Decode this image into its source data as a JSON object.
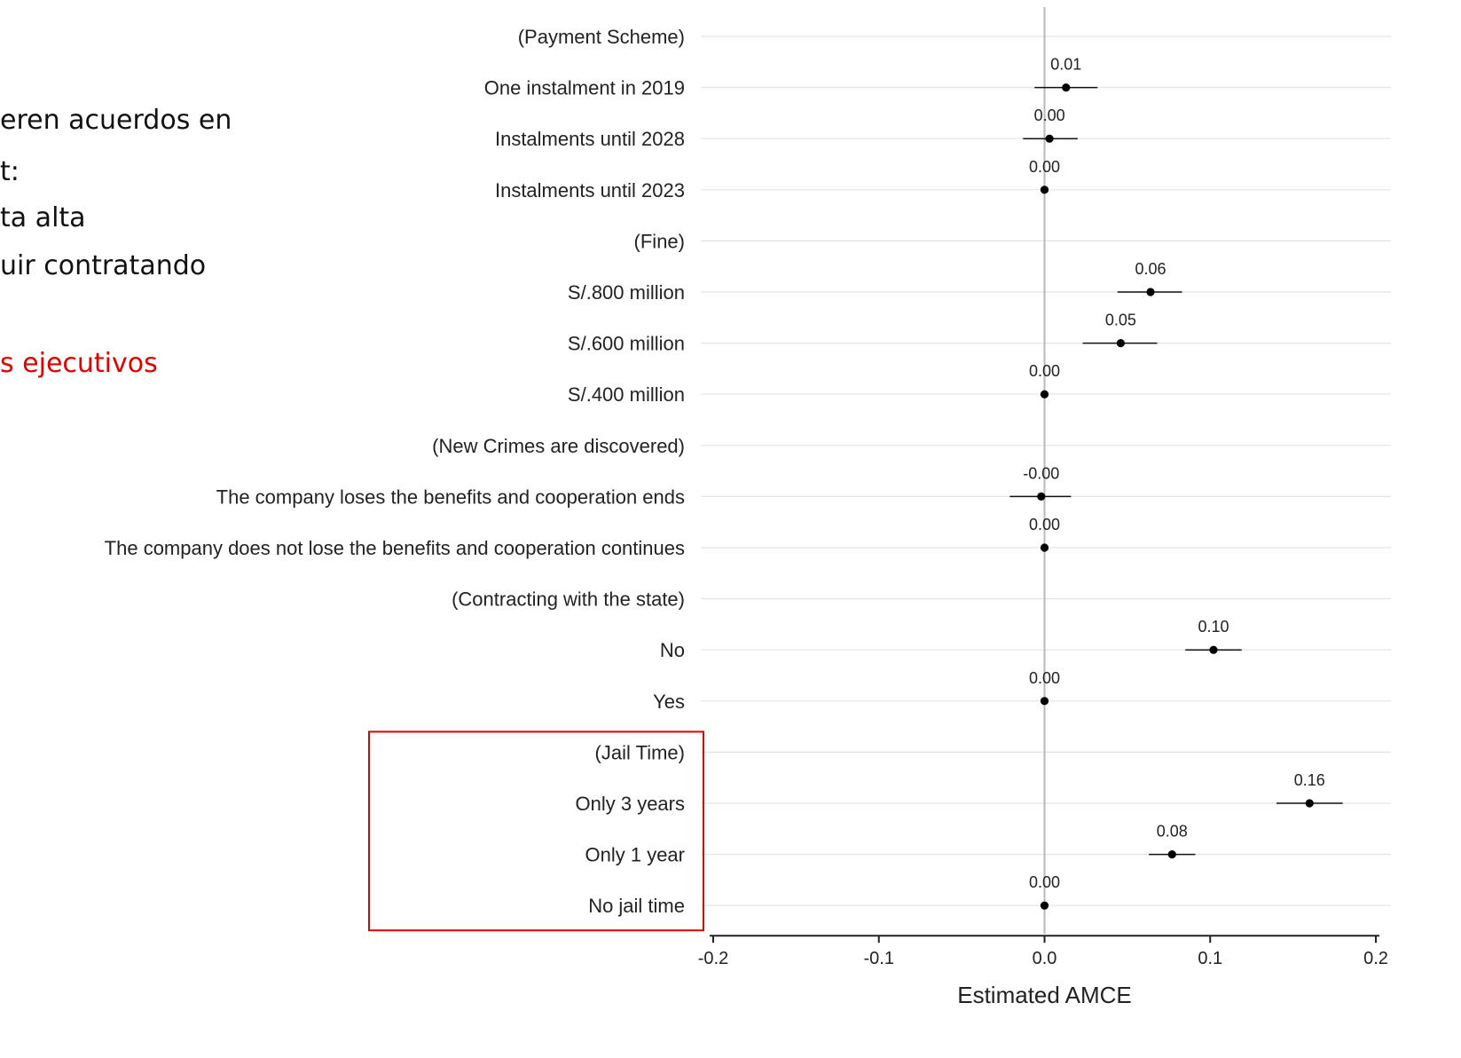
{
  "slide_text": [
    {
      "text": "eren acuerdos en",
      "color": "#111111"
    },
    {
      "text": "t:",
      "color": "#111111"
    },
    {
      "text": "ta alta",
      "color": "#111111"
    },
    {
      "text": "uir contratando",
      "color": "#111111"
    },
    {
      "text": "s ejecutivos",
      "color": "#e00000"
    }
  ],
  "chart_data": {
    "type": "scatter",
    "xlabel": "Estimated AMCE",
    "xlim": [
      -0.2,
      0.2
    ],
    "xticks": [
      "-0.2",
      "-0.1",
      "0.0",
      "0.1",
      "0.2"
    ],
    "tick_values": [
      -0.2,
      -0.1,
      0.0,
      0.1,
      0.2
    ],
    "grid": true,
    "reference_line": 0.0,
    "highlight_box": {
      "group": "(Jail Time)",
      "color": "#e00000"
    },
    "rows": [
      {
        "label": "(Payment Scheme)",
        "header": true
      },
      {
        "label": "One instalment in 2019",
        "estimate": 0.013,
        "ci": [
          -0.006,
          0.032
        ],
        "value_label": "0.01"
      },
      {
        "label": "Instalments until 2028",
        "estimate": 0.003,
        "ci": [
          -0.013,
          0.02
        ],
        "value_label": "0.00"
      },
      {
        "label": "Instalments until 2023",
        "estimate": 0.0,
        "ci": [
          0.0,
          0.0
        ],
        "value_label": "0.00"
      },
      {
        "label": "(Fine)",
        "header": true
      },
      {
        "label": "S/.800 million",
        "estimate": 0.064,
        "ci": [
          0.044,
          0.083
        ],
        "value_label": "0.06"
      },
      {
        "label": "S/.600 million",
        "estimate": 0.046,
        "ci": [
          0.023,
          0.068
        ],
        "value_label": "0.05"
      },
      {
        "label": "S/.400 million",
        "estimate": 0.0,
        "ci": [
          0.0,
          0.0
        ],
        "value_label": "0.00"
      },
      {
        "label": "(New Crimes are discovered)",
        "header": true
      },
      {
        "label": "The company loses the benefits and cooperation ends",
        "estimate": -0.002,
        "ci": [
          -0.021,
          0.016
        ],
        "value_label": "-0.00"
      },
      {
        "label": "The company does not lose the benefits and cooperation continues",
        "estimate": 0.0,
        "ci": [
          0.0,
          0.0
        ],
        "value_label": "0.00"
      },
      {
        "label": "(Contracting with the state)",
        "header": true
      },
      {
        "label": "No",
        "estimate": 0.102,
        "ci": [
          0.085,
          0.119
        ],
        "value_label": "0.10"
      },
      {
        "label": "Yes",
        "estimate": 0.0,
        "ci": [
          0.0,
          0.0
        ],
        "value_label": "0.00"
      },
      {
        "label": "(Jail Time)",
        "header": true
      },
      {
        "label": "Only 3 years",
        "estimate": 0.16,
        "ci": [
          0.14,
          0.18
        ],
        "value_label": "0.16"
      },
      {
        "label": "Only 1 year",
        "estimate": 0.077,
        "ci": [
          0.063,
          0.091
        ],
        "value_label": "0.08"
      },
      {
        "label": "No jail time",
        "estimate": 0.0,
        "ci": [
          0.0,
          0.0
        ],
        "value_label": "0.00"
      }
    ]
  }
}
